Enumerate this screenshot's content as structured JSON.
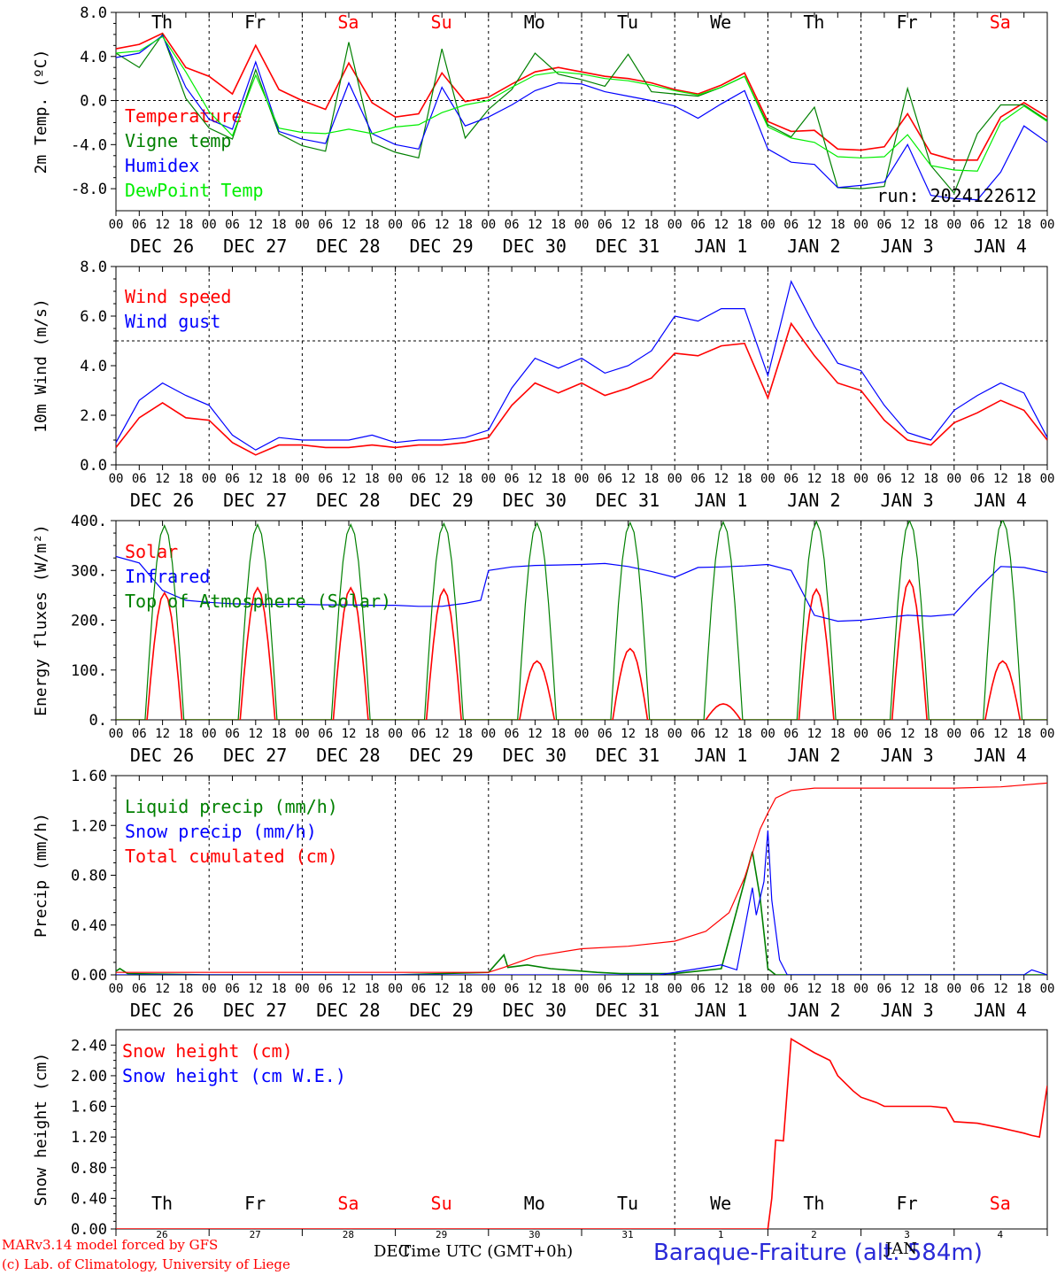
{
  "run_label": "run: 2024122612",
  "station": "Baraque-Fraiture (alt. 584m)",
  "footer": {
    "model": "MARv3.14 model forced by GFS",
    "lab": "(c) Lab. of Climatology, University of Liege",
    "time_label": "Time UTC (GMT+0h)",
    "month_left": "DEC",
    "month_right": "JAN"
  },
  "weekdays": [
    {
      "label": "Th",
      "weekend": false
    },
    {
      "label": "Fr",
      "weekend": false
    },
    {
      "label": "Sa",
      "weekend": true
    },
    {
      "label": "Su",
      "weekend": true
    },
    {
      "label": "Mo",
      "weekend": false
    },
    {
      "label": "Tu",
      "weekend": false
    },
    {
      "label": "We",
      "weekend": false
    },
    {
      "label": "Th",
      "weekend": false
    },
    {
      "label": "Fr",
      "weekend": false
    },
    {
      "label": "Sa",
      "weekend": true
    }
  ],
  "dates": [
    "DEC 26",
    "DEC 27",
    "DEC 28",
    "DEC 29",
    "DEC 30",
    "DEC 31",
    "JAN  1",
    "JAN  2",
    "JAN  3",
    "JAN  4"
  ],
  "day_numbers": [
    "26",
    "27",
    "28",
    "29",
    "30",
    "31",
    "1",
    "2",
    "3",
    "4"
  ],
  "hour_ticks": [
    "00",
    "06",
    "12",
    "18"
  ],
  "colors": {
    "red": "#ff0000",
    "dark_green": "#008000",
    "blue": "#0000ff",
    "light_green": "#00ee00",
    "weekend": "#ff0000"
  },
  "chart_data": [
    {
      "type": "line",
      "ylabel": "2m Temp. (ºC)",
      "ylim": [
        -10,
        8
      ],
      "yticks": [
        "8.0",
        "4.0",
        "0.0",
        "-4.0",
        "-8.0"
      ],
      "ytick_values": [
        8,
        4,
        0,
        -4,
        -8
      ],
      "reference_line": 0,
      "x_unit": "hours since 2024-12-26 00 UTC",
      "series": [
        {
          "name": "Temperature",
          "color": "#ff0000",
          "x": [
            0,
            6,
            12,
            18,
            24,
            30,
            36,
            42,
            48,
            54,
            60,
            66,
            72,
            78,
            84,
            90,
            96,
            102,
            108,
            114,
            120,
            126,
            132,
            138,
            144,
            150,
            156,
            162,
            168,
            174,
            180,
            186,
            192,
            198,
            204,
            210,
            216,
            222,
            228,
            234,
            240
          ],
          "y": [
            4.7,
            5.1,
            6.1,
            3.0,
            2.2,
            0.6,
            5.0,
            1.0,
            0.0,
            -0.8,
            3.4,
            -0.2,
            -1.5,
            -1.2,
            2.5,
            -0.1,
            0.3,
            1.5,
            2.6,
            3.0,
            2.6,
            2.2,
            2.0,
            1.6,
            1.0,
            0.6,
            1.4,
            2.5,
            -1.9,
            -2.8,
            -2.7,
            -4.4,
            -4.5,
            -4.2,
            -1.2,
            -4.8,
            -5.4,
            -5.4,
            -1.5,
            -0.2,
            -1.5
          ]
        },
        {
          "name": "Vigne temp",
          "color": "#008000",
          "x": [
            0,
            6,
            12,
            18,
            24,
            30,
            36,
            42,
            48,
            54,
            60,
            66,
            72,
            78,
            84,
            90,
            96,
            102,
            108,
            114,
            120,
            126,
            132,
            138,
            144,
            150,
            156,
            162,
            168,
            174,
            180,
            186,
            192,
            198,
            204,
            210,
            216,
            222,
            228,
            234,
            240
          ],
          "y": [
            4.3,
            3.0,
            6.0,
            0.2,
            -2.5,
            -3.5,
            2.8,
            -3.0,
            -4.1,
            -4.6,
            5.3,
            -3.8,
            -4.7,
            -5.2,
            4.7,
            -3.4,
            -0.8,
            1.0,
            4.3,
            2.4,
            1.9,
            1.3,
            4.2,
            0.8,
            0.6,
            0.4,
            1.2,
            2.2,
            -2.2,
            -3.3,
            -0.6,
            -7.9,
            -8.0,
            -7.8,
            1.1,
            -5.9,
            -8.4,
            -3.0,
            -0.4,
            -0.4,
            -1.8
          ]
        },
        {
          "name": "Humidex",
          "color": "#0000ff",
          "x": [
            0,
            6,
            12,
            18,
            24,
            30,
            36,
            42,
            48,
            54,
            60,
            66,
            72,
            78,
            84,
            90,
            96,
            102,
            108,
            114,
            120,
            126,
            132,
            138,
            144,
            150,
            156,
            162,
            168,
            174,
            180,
            186,
            192,
            198,
            204,
            210,
            216,
            222,
            228,
            234,
            240
          ],
          "y": [
            3.9,
            4.3,
            5.9,
            1.2,
            -1.7,
            -2.6,
            3.5,
            -2.8,
            -3.5,
            -3.9,
            1.6,
            -3.0,
            -4.0,
            -4.4,
            1.2,
            -2.3,
            -1.5,
            -0.4,
            0.9,
            1.6,
            1.5,
            0.8,
            0.4,
            0.0,
            -0.5,
            -1.6,
            -0.3,
            0.9,
            -4.4,
            -5.6,
            -5.8,
            -7.9,
            -7.7,
            -7.4,
            -4.0,
            -8.6,
            -8.9,
            -9.0,
            -6.5,
            -2.3,
            -3.8
          ]
        },
        {
          "name": "DewPoint Temp",
          "color": "#00ee00",
          "x": [
            0,
            6,
            12,
            18,
            24,
            30,
            36,
            42,
            48,
            54,
            60,
            66,
            72,
            78,
            84,
            90,
            96,
            102,
            108,
            114,
            120,
            126,
            132,
            138,
            144,
            150,
            156,
            162,
            168,
            174,
            180,
            186,
            192,
            198,
            204,
            210,
            216,
            222,
            228,
            234,
            240
          ],
          "y": [
            4.3,
            4.5,
            5.8,
            2.6,
            -1.0,
            -3.2,
            2.3,
            -2.5,
            -2.9,
            -3.0,
            -2.6,
            -3.0,
            -2.4,
            -2.2,
            -1.1,
            -0.4,
            0.0,
            1.2,
            2.3,
            2.6,
            2.4,
            2.0,
            1.8,
            1.4,
            0.9,
            0.5,
            1.2,
            2.2,
            -2.4,
            -3.4,
            -3.8,
            -5.1,
            -5.2,
            -5.1,
            -3.1,
            -5.9,
            -6.3,
            -6.4,
            -2.0,
            -0.5,
            -1.9
          ]
        }
      ]
    },
    {
      "type": "line",
      "ylabel": "10m Wind (m/s)",
      "ylim": [
        0,
        8
      ],
      "yticks": [
        "8.0",
        "6.0",
        "4.0",
        "2.0",
        "0.0"
      ],
      "ytick_values": [
        8,
        6,
        4,
        2,
        0
      ],
      "reference_line": 5,
      "x_unit": "hours since 2024-12-26 00 UTC",
      "series": [
        {
          "name": "Wind speed",
          "color": "#ff0000",
          "x": [
            0,
            6,
            12,
            18,
            24,
            30,
            36,
            42,
            48,
            54,
            60,
            66,
            72,
            78,
            84,
            90,
            96,
            102,
            108,
            114,
            120,
            126,
            132,
            138,
            144,
            150,
            156,
            162,
            168,
            174,
            180,
            186,
            192,
            198,
            204,
            210,
            216,
            222,
            228,
            234,
            240
          ],
          "y": [
            0.7,
            1.9,
            2.5,
            1.9,
            1.8,
            0.9,
            0.4,
            0.8,
            0.8,
            0.7,
            0.7,
            0.8,
            0.7,
            0.8,
            0.8,
            0.9,
            1.1,
            2.4,
            3.3,
            2.9,
            3.3,
            2.8,
            3.1,
            3.5,
            4.5,
            4.4,
            4.8,
            4.9,
            2.7,
            5.7,
            4.4,
            3.3,
            3.0,
            1.8,
            1.0,
            0.8,
            1.7,
            2.1,
            2.6,
            2.2,
            1.0
          ]
        },
        {
          "name": "Wind gust",
          "color": "#0000ff",
          "x": [
            0,
            6,
            12,
            18,
            24,
            30,
            36,
            42,
            48,
            54,
            60,
            66,
            72,
            78,
            84,
            90,
            96,
            102,
            108,
            114,
            120,
            126,
            132,
            138,
            144,
            150,
            156,
            162,
            168,
            174,
            180,
            186,
            192,
            198,
            204,
            210,
            216,
            222,
            228,
            234,
            240
          ],
          "y": [
            0.9,
            2.6,
            3.3,
            2.8,
            2.4,
            1.2,
            0.6,
            1.1,
            1.0,
            1.0,
            1.0,
            1.2,
            0.9,
            1.0,
            1.0,
            1.1,
            1.4,
            3.1,
            4.3,
            3.9,
            4.3,
            3.7,
            4.0,
            4.6,
            6.0,
            5.8,
            6.3,
            6.3,
            3.6,
            7.4,
            5.6,
            4.1,
            3.8,
            2.4,
            1.3,
            1.0,
            2.2,
            2.8,
            3.3,
            2.9,
            1.1
          ]
        }
      ]
    },
    {
      "type": "line",
      "ylabel": "Energy fluxes (W/m²)",
      "ylim": [
        0,
        400
      ],
      "yticks": [
        "400.",
        "300.",
        "200.",
        "100.",
        "0."
      ],
      "ytick_values": [
        400,
        300,
        200,
        100,
        0
      ],
      "x_unit": "hours since 2024-12-26 00 UTC",
      "series": [
        {
          "name": "Solar",
          "color": "#ff0000",
          "daily_peak": [
            255,
            265,
            265,
            262,
            118,
            143,
            32,
            262,
            280,
            118
          ],
          "x": [
            8,
            12.5,
            17
          ],
          "y_shape": [
            0,
            1,
            0
          ]
        },
        {
          "name": "Infrared",
          "color": "#0000ff",
          "x": [
            0,
            6,
            12,
            18,
            24,
            30,
            36,
            42,
            48,
            54,
            60,
            66,
            72,
            78,
            84,
            90,
            94,
            96,
            102,
            108,
            114,
            120,
            126,
            132,
            138,
            144,
            150,
            156,
            162,
            168,
            174,
            180,
            186,
            192,
            198,
            204,
            210,
            216,
            222,
            228,
            234,
            240
          ],
          "y": [
            328,
            315,
            260,
            240,
            236,
            233,
            232,
            232,
            232,
            231,
            231,
            230,
            230,
            228,
            228,
            234,
            240,
            300,
            307,
            310,
            311,
            312,
            314,
            308,
            298,
            286,
            306,
            307,
            309,
            312,
            300,
            210,
            198,
            200,
            205,
            210,
            208,
            212,
            262,
            308,
            306,
            296
          ]
        },
        {
          "name": "Top of Atmosphere (Solar)",
          "color": "#008000",
          "daily_peak": [
            390,
            392,
            392,
            394,
            395,
            396,
            397,
            398,
            400,
            402
          ],
          "x": [
            7.5,
            12.5,
            17.5
          ],
          "y_shape": [
            0,
            1,
            0
          ]
        }
      ]
    },
    {
      "type": "line",
      "ylabel": "Precip (mm/h)",
      "ylim": [
        0,
        1.6
      ],
      "yticks": [
        "1.60",
        "1.20",
        "0.80",
        "0.40",
        "0.00"
      ],
      "ytick_values": [
        1.6,
        1.2,
        0.8,
        0.4,
        0
      ],
      "x_unit": "hours since 2024-12-26 00 UTC",
      "series": [
        {
          "name": "Liquid precip (mm/h)",
          "color": "#008000",
          "x": [
            0,
            1,
            3,
            24,
            72,
            96,
            100,
            101,
            106,
            112,
            124,
            130,
            144,
            156,
            164,
            166,
            168,
            170,
            172,
            174,
            240
          ],
          "y": [
            0.03,
            0.05,
            0.01,
            0.0,
            0.0,
            0.02,
            0.16,
            0.06,
            0.08,
            0.05,
            0.02,
            0.01,
            0.01,
            0.05,
            0.99,
            0.62,
            0.05,
            0.0,
            0.0,
            0.0,
            0.0
          ]
        },
        {
          "name": "Snow precip (mm/h)",
          "color": "#0000ff",
          "x": [
            0,
            140,
            150,
            156,
            160,
            164,
            165,
            167,
            168,
            169,
            171,
            173,
            176,
            180,
            234,
            236,
            238,
            240
          ],
          "y": [
            0.0,
            0.0,
            0.05,
            0.08,
            0.04,
            0.7,
            0.48,
            0.75,
            1.16,
            0.6,
            0.12,
            0.0,
            0.0,
            0.0,
            0.0,
            0.04,
            0.02,
            0.0
          ]
        },
        {
          "name": "Total cumulated (cm)",
          "color": "#ff0000",
          "x": [
            0,
            96,
            100,
            108,
            120,
            132,
            144,
            152,
            158,
            162,
            166,
            168,
            170,
            174,
            180,
            186,
            216,
            228,
            240
          ],
          "y": [
            0.02,
            0.02,
            0.06,
            0.15,
            0.21,
            0.23,
            0.27,
            0.35,
            0.5,
            0.78,
            1.17,
            1.3,
            1.42,
            1.48,
            1.5,
            1.5,
            1.5,
            1.51,
            1.54
          ]
        }
      ]
    },
    {
      "type": "line",
      "ylabel": "Snow height (cm)",
      "ylim": [
        0,
        2.6
      ],
      "yticks": [
        "2.40",
        "2.00",
        "1.60",
        "1.20",
        "0.80",
        "0.40",
        "0.00"
      ],
      "ytick_values": [
        2.4,
        2.0,
        1.6,
        1.2,
        0.8,
        0.4,
        0
      ],
      "x_unit": "hours since 2024-12-26 00 UTC",
      "series": [
        {
          "name": "Snow height (cm)",
          "color": "#ff0000",
          "x": [
            0,
            168,
            169,
            170,
            172,
            174,
            176,
            180,
            184,
            186,
            190,
            192,
            196,
            198,
            204,
            210,
            214,
            216,
            222,
            228,
            234,
            236,
            238,
            240
          ],
          "y": [
            0,
            0,
            0.4,
            1.16,
            1.15,
            2.48,
            2.42,
            2.3,
            2.2,
            2.0,
            1.8,
            1.72,
            1.65,
            1.6,
            1.6,
            1.6,
            1.58,
            1.4,
            1.38,
            1.32,
            1.25,
            1.22,
            1.2,
            1.87
          ]
        },
        {
          "name": "Snow height (cm W.E.)",
          "color": "#0000ff",
          "x": [],
          "y": []
        }
      ]
    }
  ]
}
